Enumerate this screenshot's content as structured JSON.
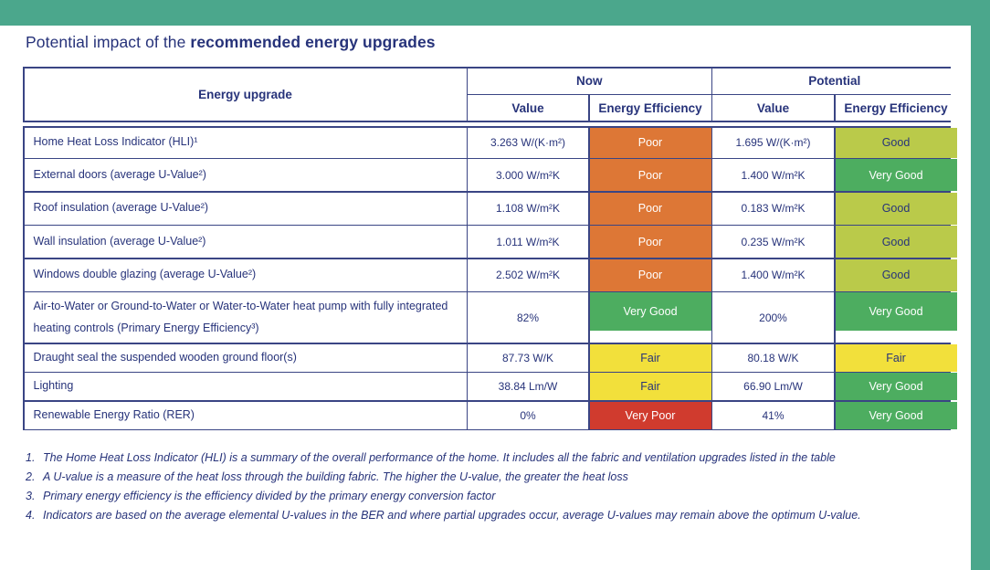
{
  "page": {
    "title_prefix": "Potential impact of the ",
    "title_bold": "recommended energy upgrades"
  },
  "theme": {
    "teal": "#4BA78C",
    "navy": "#27337A",
    "border": "#3A4584"
  },
  "rating_colors": {
    "Poor": {
      "bg": "#DD7736",
      "text": "#FFFFFF"
    },
    "Good": {
      "bg": "#BACA4A",
      "text": "#27337A"
    },
    "Very Good": {
      "bg": "#4DAD60",
      "text": "#FFFFFF"
    },
    "Fair": {
      "bg": "#F2E03B",
      "text": "#27337A"
    },
    "Very Poor": {
      "bg": "#D03B2E",
      "text": "#FFFFFF"
    }
  },
  "table": {
    "col1_header": "Energy upgrade",
    "group_headers": [
      "Now",
      "Potential"
    ],
    "sub_headers": [
      "Value",
      "Energy Efficiency",
      "Value",
      "Energy Efficiency"
    ],
    "rows": [
      {
        "label": "Home Heat Loss Indicator (HLI)¹",
        "now_value": "3.263 W/(K·m²)",
        "now_rating": "Poor",
        "potential_value": "1.695 W/(K·m²)",
        "potential_rating": "Good"
      },
      {
        "label": "External doors (average U-Value²)",
        "now_value": "3.000 W/m²K",
        "now_rating": "Poor",
        "potential_value": "1.400 W/m²K",
        "potential_rating": "Very Good"
      },
      {
        "label": "Roof insulation (average U-Value²)",
        "now_value": "1.108 W/m²K",
        "now_rating": "Poor",
        "potential_value": "0.183 W/m²K",
        "potential_rating": "Good"
      },
      {
        "label": "Wall insulation (average U-Value²)",
        "now_value": "1.011 W/m²K",
        "now_rating": "Poor",
        "potential_value": "0.235 W/m²K",
        "potential_rating": "Good"
      },
      {
        "label": "Windows double glazing (average U-Value²)",
        "now_value": "2.502 W/m²K",
        "now_rating": "Poor",
        "potential_value": "1.400 W/m²K",
        "potential_rating": "Good"
      },
      {
        "label": "Air-to-Water or Ground-to-Water or Water-to-Water heat pump with fully integrated heating controls (Primary Energy Efficiency³)",
        "now_value": "82%",
        "now_rating": "Very Good",
        "potential_value": "200%",
        "potential_rating": "Very Good"
      },
      {
        "label": "Draught seal the suspended wooden ground floor(s)",
        "now_value": "87.73 W/K",
        "now_rating": "Fair",
        "potential_value": "80.18 W/K",
        "potential_rating": "Fair"
      },
      {
        "label": "Lighting",
        "now_value": "38.84 Lm/W",
        "now_rating": "Fair",
        "potential_value": "66.90 Lm/W",
        "potential_rating": "Very Good"
      },
      {
        "label": "Renewable Energy Ratio (RER)",
        "now_value": "0%",
        "now_rating": "Very Poor",
        "potential_value": "41%",
        "potential_rating": "Very Good"
      }
    ]
  },
  "footnotes": [
    {
      "num": "1.",
      "text": "The Home Heat Loss Indicator (HLI) is a summary of the overall performance of the home. It includes all the fabric and ventilation upgrades listed in the table"
    },
    {
      "num": "2.",
      "text": "A U-value is a measure of the heat loss through the building fabric. The higher the U-value, the greater the heat loss"
    },
    {
      "num": "3.",
      "text": "Primary energy efficiency is the efficiency divided by the primary energy conversion factor"
    },
    {
      "num": "4.",
      "text": "Indicators are based on the average elemental U-values in the BER and where partial upgrades occur, average U-values may remain above the optimum U-value."
    }
  ]
}
